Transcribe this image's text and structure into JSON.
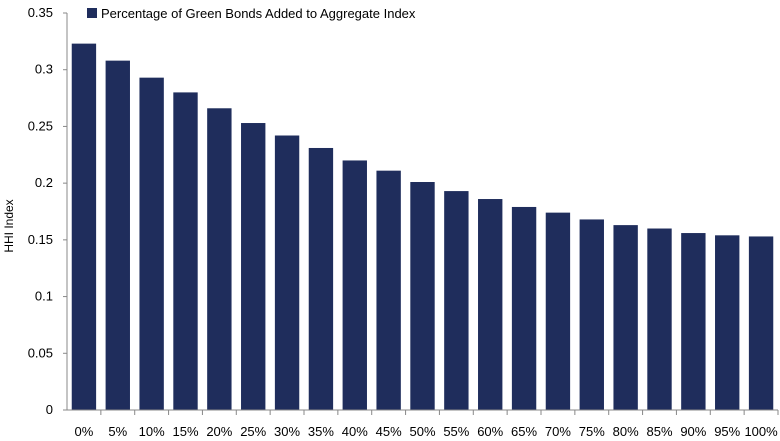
{
  "chart_data": {
    "type": "bar",
    "title": "",
    "xlabel": "",
    "ylabel": "HHI Index",
    "ylim": [
      0,
      0.35
    ],
    "yticks": [
      "0",
      "0.05",
      "0.1",
      "0.15",
      "0.2",
      "0.25",
      "0.3",
      "0.35"
    ],
    "grid": false,
    "legend_position": "top",
    "categories": [
      "0%",
      "5%",
      "10%",
      "15%",
      "20%",
      "25%",
      "30%",
      "35%",
      "40%",
      "45%",
      "50%",
      "55%",
      "60%",
      "65%",
      "70%",
      "75%",
      "80%",
      "85%",
      "90%",
      "95%",
      "100%"
    ],
    "series": [
      {
        "name": "Percentage of Green Bonds Added to Aggregate Index",
        "color": "#1f2d5c",
        "values": [
          0.323,
          0.308,
          0.293,
          0.28,
          0.266,
          0.253,
          0.242,
          0.231,
          0.22,
          0.211,
          0.201,
          0.193,
          0.186,
          0.179,
          0.174,
          0.168,
          0.163,
          0.16,
          0.156,
          0.154,
          0.153
        ]
      }
    ]
  }
}
